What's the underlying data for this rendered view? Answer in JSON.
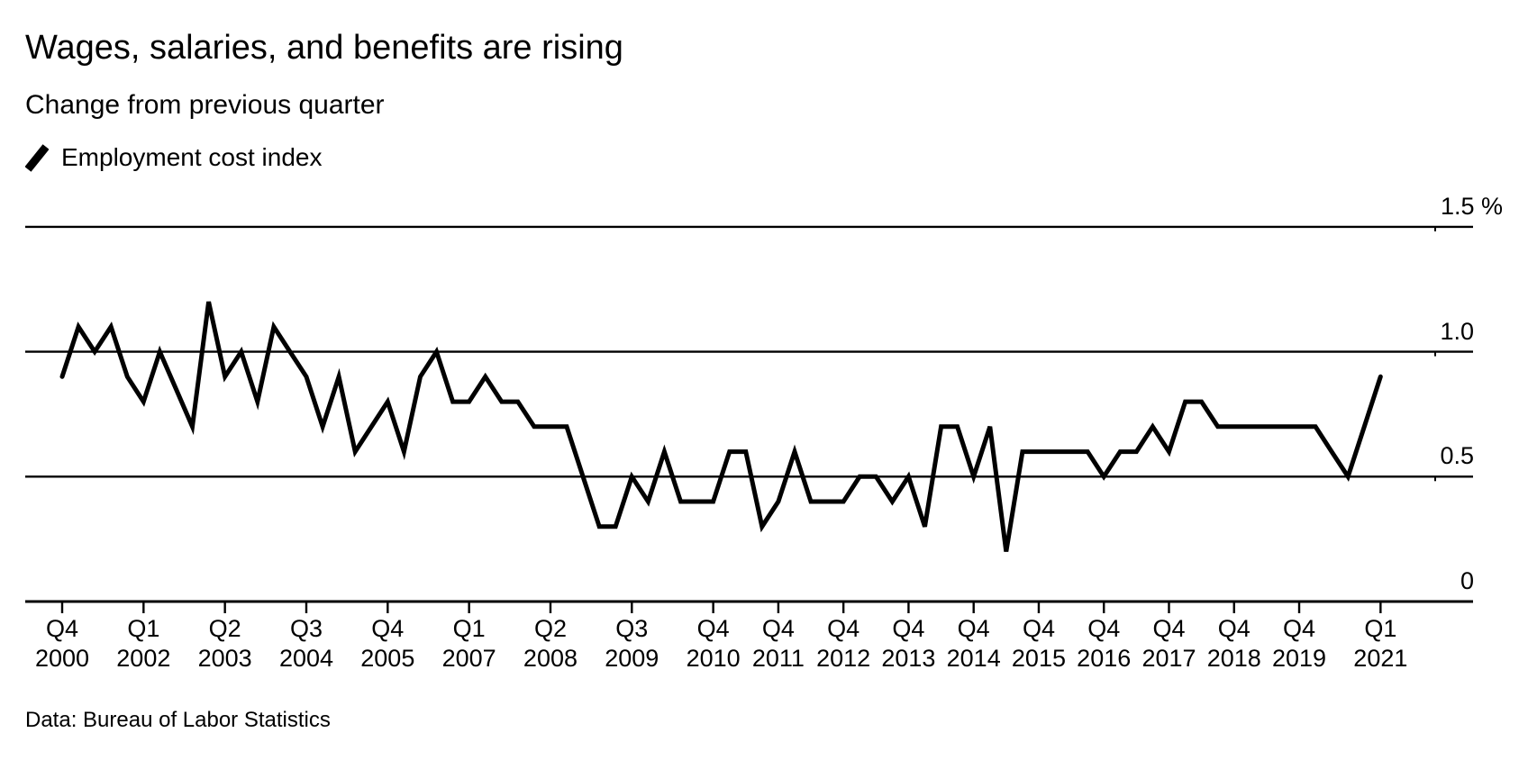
{
  "title": "Wages, salaries, and benefits are rising",
  "subtitle": "Change from previous quarter",
  "legend": {
    "label": "Employment cost index"
  },
  "footer": "Data: Bureau of Labor Statistics",
  "colors": {
    "line": "#000000",
    "axis": "#000000",
    "text": "#000000",
    "background": "#ffffff"
  },
  "chart_data": {
    "type": "line",
    "title": "Wages, salaries, and benefits are rising",
    "subtitle": "Change from previous quarter",
    "series_name": "Employment cost index",
    "unit": "%",
    "frequency": "quarterly",
    "x_start": "Q4 2000",
    "x_end": "Q1 2021",
    "ylim": [
      0,
      1.5
    ],
    "grid": "horizontal",
    "legend_position": "top-left",
    "periods": [
      "Q4 2000",
      "Q1 2001",
      "Q2 2001",
      "Q3 2001",
      "Q4 2001",
      "Q1 2002",
      "Q2 2002",
      "Q3 2002",
      "Q4 2002",
      "Q1 2003",
      "Q2 2003",
      "Q3 2003",
      "Q4 2003",
      "Q1 2004",
      "Q2 2004",
      "Q3 2004",
      "Q4 2004",
      "Q1 2005",
      "Q2 2005",
      "Q3 2005",
      "Q4 2005",
      "Q1 2006",
      "Q2 2006",
      "Q3 2006",
      "Q4 2006",
      "Q1 2007",
      "Q2 2007",
      "Q3 2007",
      "Q4 2007",
      "Q1 2008",
      "Q2 2008",
      "Q3 2008",
      "Q4 2008",
      "Q1 2009",
      "Q2 2009",
      "Q3 2009",
      "Q4 2009",
      "Q1 2010",
      "Q2 2010",
      "Q3 2010",
      "Q4 2010",
      "Q1 2011",
      "Q2 2011",
      "Q3 2011",
      "Q4 2011",
      "Q1 2012",
      "Q2 2012",
      "Q3 2012",
      "Q4 2012",
      "Q1 2013",
      "Q2 2013",
      "Q3 2013",
      "Q4 2013",
      "Q1 2014",
      "Q2 2014",
      "Q3 2014",
      "Q4 2014",
      "Q1 2015",
      "Q2 2015",
      "Q3 2015",
      "Q4 2015",
      "Q1 2016",
      "Q2 2016",
      "Q3 2016",
      "Q4 2016",
      "Q1 2017",
      "Q2 2017",
      "Q3 2017",
      "Q4 2017",
      "Q1 2018",
      "Q2 2018",
      "Q3 2018",
      "Q4 2018",
      "Q1 2019",
      "Q2 2019",
      "Q3 2019",
      "Q4 2019",
      "Q1 2020",
      "Q2 2020",
      "Q3 2020",
      "Q4 2020",
      "Q1 2021"
    ],
    "values": [
      0.9,
      1.1,
      1.0,
      1.1,
      0.9,
      0.8,
      1.0,
      0.85,
      0.7,
      1.2,
      0.9,
      1.0,
      0.8,
      1.1,
      1.0,
      0.9,
      0.7,
      0.9,
      0.6,
      0.7,
      0.8,
      0.6,
      0.9,
      1.0,
      0.8,
      0.8,
      0.9,
      0.8,
      0.8,
      0.7,
      0.7,
      0.7,
      0.5,
      0.3,
      0.3,
      0.5,
      0.4,
      0.6,
      0.4,
      0.4,
      0.4,
      0.6,
      0.6,
      0.3,
      0.4,
      0.6,
      0.4,
      0.4,
      0.4,
      0.5,
      0.5,
      0.4,
      0.5,
      0.3,
      0.7,
      0.7,
      0.5,
      0.7,
      0.2,
      0.6,
      0.6,
      0.6,
      0.6,
      0.6,
      0.5,
      0.6,
      0.6,
      0.7,
      0.6,
      0.8,
      0.8,
      0.7,
      0.7,
      0.7,
      0.7,
      0.7,
      0.7,
      0.7,
      0.6,
      0.5,
      0.7,
      0.9
    ],
    "y_ticks": [
      {
        "v": 1.5,
        "label": "1.5 %"
      },
      {
        "v": 1.0,
        "label": "1.0"
      },
      {
        "v": 0.5,
        "label": "0.5"
      },
      {
        "v": 0.0,
        "label": "0"
      }
    ],
    "x_ticks": [
      {
        "i": 0,
        "q": "Q4",
        "year": "2000"
      },
      {
        "i": 5,
        "q": "Q1",
        "year": "2002"
      },
      {
        "i": 10,
        "q": "Q2",
        "year": "2003"
      },
      {
        "i": 15,
        "q": "Q3",
        "year": "2004"
      },
      {
        "i": 20,
        "q": "Q4",
        "year": "2005"
      },
      {
        "i": 25,
        "q": "Q1",
        "year": "2007"
      },
      {
        "i": 30,
        "q": "Q2",
        "year": "2008"
      },
      {
        "i": 35,
        "q": "Q3",
        "year": "2009"
      },
      {
        "i": 40,
        "q": "Q4",
        "year": "2010"
      },
      {
        "i": 44,
        "q": "Q4",
        "year": "2011"
      },
      {
        "i": 48,
        "q": "Q4",
        "year": "2012"
      },
      {
        "i": 52,
        "q": "Q4",
        "year": "2013"
      },
      {
        "i": 56,
        "q": "Q4",
        "year": "2014"
      },
      {
        "i": 60,
        "q": "Q4",
        "year": "2015"
      },
      {
        "i": 64,
        "q": "Q4",
        "year": "2016"
      },
      {
        "i": 68,
        "q": "Q4",
        "year": "2017"
      },
      {
        "i": 72,
        "q": "Q4",
        "year": "2018"
      },
      {
        "i": 76,
        "q": "Q4",
        "year": "2019"
      },
      {
        "i": 81,
        "q": "Q1",
        "year": "2021"
      }
    ]
  }
}
